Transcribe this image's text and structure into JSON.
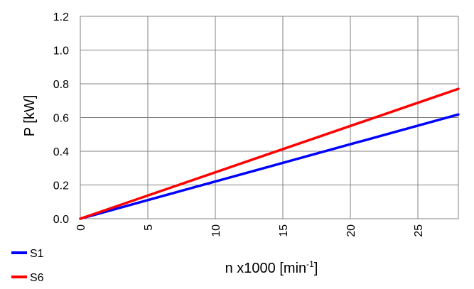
{
  "chart_data": {
    "type": "line",
    "title": "",
    "xlabel": "n x1000  [min",
    "xlabel_sup": "-1",
    "xlabel_end": "]",
    "ylabel": "P [kW]",
    "xlim": [
      0,
      28
    ],
    "ylim": [
      0.0,
      1.2
    ],
    "x_ticks": [
      0,
      5,
      10,
      15,
      20,
      25
    ],
    "x_tick_labels": [
      "0",
      "5",
      "10",
      "15",
      "20",
      "25"
    ],
    "y_ticks": [
      0.0,
      0.2,
      0.4,
      0.6,
      0.8,
      1.0,
      1.2
    ],
    "y_tick_labels": [
      "0.0",
      "0.2",
      "0.4",
      "0.6",
      "0.8",
      "1.0",
      "1.2"
    ],
    "grid": true,
    "legend_position": "bottom-left",
    "series": [
      {
        "name": "S1",
        "color": "#0000ff",
        "x": [
          0,
          28
        ],
        "y": [
          0.0,
          0.618
        ]
      },
      {
        "name": "S6",
        "color": "#ff0000",
        "x": [
          0,
          28
        ],
        "y": [
          0.0,
          0.77
        ]
      }
    ]
  }
}
